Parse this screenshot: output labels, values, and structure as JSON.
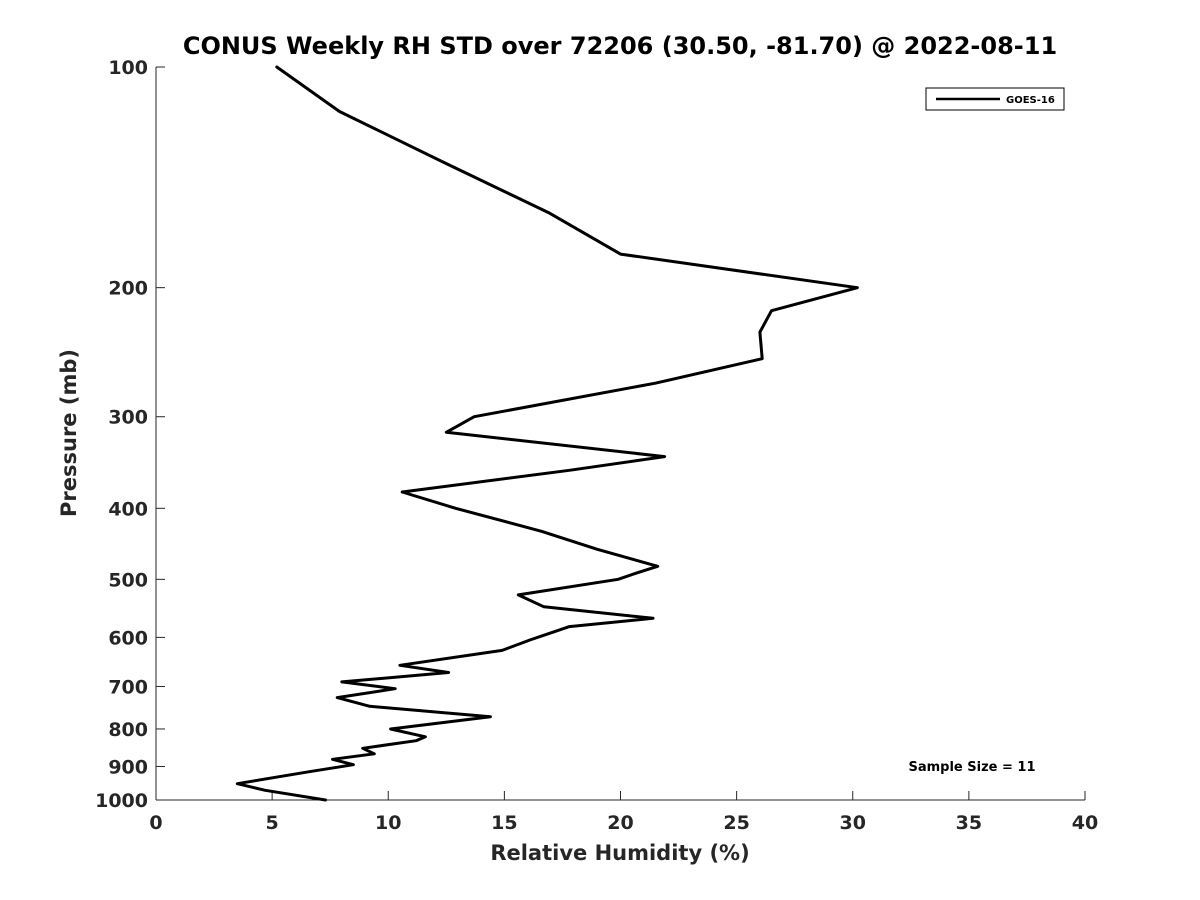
{
  "chart_data": {
    "type": "line",
    "title": "CONUS Weekly RH STD over 72206 (30.50, -81.70) @ 2022-08-11",
    "xlabel": "Relative Humidity (%)",
    "ylabel": "Pressure (mb)",
    "xlim": [
      0,
      40
    ],
    "ylim": [
      100,
      1000
    ],
    "y_scale": "log",
    "y_reversed": true,
    "x_ticks": [
      "0",
      "5",
      "10",
      "15",
      "20",
      "25",
      "30",
      "35",
      "40"
    ],
    "y_ticks": [
      "100",
      "200",
      "300",
      "400",
      "500",
      "600",
      "700",
      "800",
      "900",
      "1000"
    ],
    "grid": false,
    "legend": {
      "location": "top-right",
      "entries": [
        "GOES-16"
      ]
    },
    "annotation": "Sample Size = 11",
    "series": [
      {
        "name": "GOES-16",
        "color": "#000000",
        "points": [
          [
            5.2,
            100
          ],
          [
            7.9,
            115
          ],
          [
            12.4,
            135
          ],
          [
            16.9,
            158
          ],
          [
            20.0,
            180
          ],
          [
            30.2,
            200
          ],
          [
            26.5,
            215
          ],
          [
            26.0,
            230
          ],
          [
            26.1,
            250
          ],
          [
            21.5,
            270
          ],
          [
            13.7,
            300
          ],
          [
            12.5,
            315
          ],
          [
            21.9,
            340
          ],
          [
            17.8,
            355
          ],
          [
            10.6,
            380
          ],
          [
            12.9,
            400
          ],
          [
            16.6,
            430
          ],
          [
            19.0,
            455
          ],
          [
            21.6,
            480
          ],
          [
            20.7,
            490
          ],
          [
            19.9,
            500
          ],
          [
            15.6,
            525
          ],
          [
            16.7,
            545
          ],
          [
            21.4,
            565
          ],
          [
            17.8,
            580
          ],
          [
            16.1,
            605
          ],
          [
            14.9,
            625
          ],
          [
            10.5,
            655
          ],
          [
            12.6,
            670
          ],
          [
            8.0,
            690
          ],
          [
            10.3,
            705
          ],
          [
            7.8,
            725
          ],
          [
            9.2,
            745
          ],
          [
            14.4,
            770
          ],
          [
            10.1,
            800
          ],
          [
            11.6,
            820
          ],
          [
            11.2,
            830
          ],
          [
            8.9,
            850
          ],
          [
            9.4,
            865
          ],
          [
            7.6,
            880
          ],
          [
            8.5,
            895
          ],
          [
            6.6,
            915
          ],
          [
            3.5,
            950
          ],
          [
            4.7,
            970
          ],
          [
            7.3,
            1000
          ]
        ]
      }
    ]
  }
}
